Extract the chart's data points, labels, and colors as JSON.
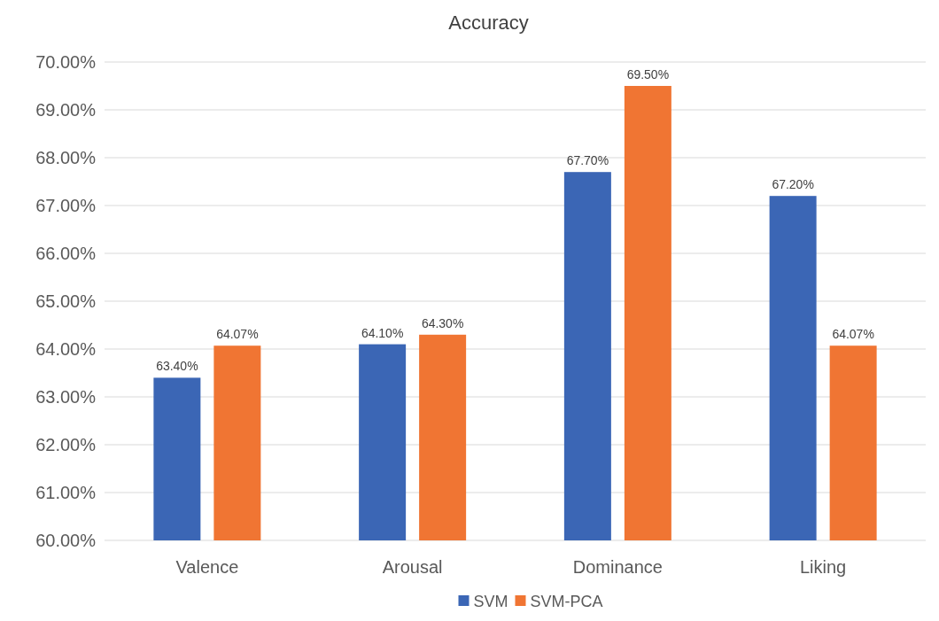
{
  "chart_data": {
    "type": "bar",
    "title": "Accuracy",
    "categories": [
      "Valence",
      "Arousal",
      "Dominance",
      "Liking"
    ],
    "series": [
      {
        "name": "SVM",
        "color": "#3b66b5",
        "values": [
          63.4,
          64.1,
          67.7,
          67.2
        ],
        "value_labels": [
          "63.40%",
          "64.10%",
          "67.70%",
          "67.20%"
        ]
      },
      {
        "name": "SVM-PCA",
        "color": "#f07533",
        "values": [
          64.07,
          64.3,
          69.5,
          64.07
        ],
        "value_labels": [
          "64.07%",
          "64.30%",
          "69.50%",
          "64.07%"
        ]
      }
    ],
    "ylim": [
      60,
      70
    ],
    "yticks": [
      {
        "value": 60,
        "label": "60.00%"
      },
      {
        "value": 61,
        "label": "61.00%"
      },
      {
        "value": 62,
        "label": "62.00%"
      },
      {
        "value": 63,
        "label": "63.00%"
      },
      {
        "value": 64,
        "label": "64.00%"
      },
      {
        "value": 65,
        "label": "65.00%"
      },
      {
        "value": 66,
        "label": "66.00%"
      },
      {
        "value": 67,
        "label": "67.00%"
      },
      {
        "value": 68,
        "label": "68.00%"
      },
      {
        "value": 69,
        "label": "69.00%"
      },
      {
        "value": 70,
        "label": "70.00%"
      }
    ],
    "grid": "y",
    "legend": "bottom"
  }
}
